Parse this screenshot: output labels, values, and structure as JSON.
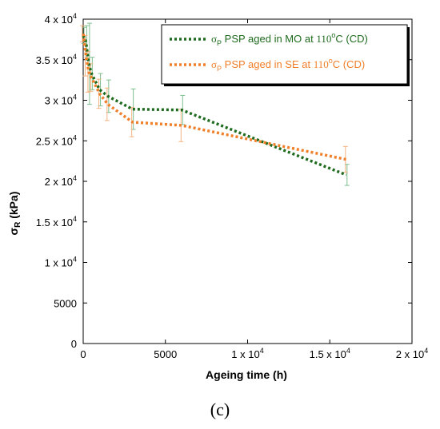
{
  "chart_data": {
    "type": "line",
    "panel_label": "(c)",
    "xlabel": "Ageing time (h)",
    "ylabel": "σR (kPa)",
    "ylabel_main": "σ",
    "ylabel_sub": "R",
    "ylabel_rest": " (kPa)",
    "xlim": [
      0,
      20000
    ],
    "ylim": [
      0,
      40000
    ],
    "x_ticks": [
      {
        "value": 0,
        "label": "0"
      },
      {
        "value": 5000,
        "label": "5000"
      },
      {
        "value": 10000,
        "label": "1 x 10",
        "exp": "4"
      },
      {
        "value": 15000,
        "label": "1.5 x 10",
        "exp": "4"
      },
      {
        "value": 20000,
        "label": "2 x 10",
        "exp": "4"
      }
    ],
    "y_ticks": [
      {
        "value": 0,
        "label": "0"
      },
      {
        "value": 5000,
        "label": "5000"
      },
      {
        "value": 10000,
        "label": "1 x 10",
        "exp": "4"
      },
      {
        "value": 15000,
        "label": "1.5 x 10",
        "exp": "4"
      },
      {
        "value": 20000,
        "label": "2 x 10",
        "exp": "4"
      },
      {
        "value": 25000,
        "label": "2.5 x 10",
        "exp": "4"
      },
      {
        "value": 30000,
        "label": "3 x 10",
        "exp": "4"
      },
      {
        "value": 35000,
        "label": "3.5 x 10",
        "exp": "4"
      },
      {
        "value": 40000,
        "label": "4 x 10",
        "exp": "4"
      }
    ],
    "legend_position": "top-right",
    "grid": false,
    "series": [
      {
        "name": "σP PSP aged in MO at 110°C (CD)",
        "legend": {
          "sigma": "σ",
          "sub": "P",
          "text1": " PSP aged in MO at ",
          "temp": "110",
          "deg": "o",
          "text2": "C (CD)"
        },
        "color": "#1e6b1e",
        "x": [
          0,
          168,
          336,
          504,
          1000,
          1500,
          3000,
          6000,
          16000
        ],
        "values": [
          38000,
          37200,
          34500,
          33300,
          31300,
          30500,
          28900,
          28800,
          20800
        ],
        "errors": [
          1000,
          2000,
          5000,
          2000,
          2000,
          2000,
          2500,
          1800,
          1300
        ]
      },
      {
        "name": "σP PSP aged in SE at 110°C (CD)",
        "legend": {
          "sigma": "σ",
          "sub": "P",
          "text1": " PSP aged in SE at ",
          "temp": "110",
          "deg": "o",
          "text2": "C (CD)"
        },
        "color": "#f07f2a",
        "x": [
          0,
          168,
          336,
          504,
          1000,
          1500,
          3000,
          6000,
          16000
        ],
        "values": [
          38200,
          35500,
          33500,
          32800,
          30800,
          29500,
          27300,
          26900,
          22700
        ],
        "errors": [
          1000,
          2500,
          2500,
          1700,
          1800,
          2000,
          1800,
          2000,
          1600
        ]
      }
    ]
  }
}
